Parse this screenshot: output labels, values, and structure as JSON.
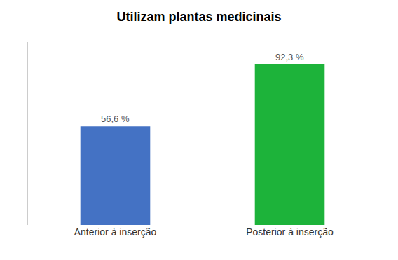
{
  "chart_data": {
    "type": "bar",
    "title": "Utilizam plantas medicinais",
    "categories": [
      "Anterior à inserção",
      "Posterior à inserção"
    ],
    "values": [
      56.6,
      92.3
    ],
    "value_labels": [
      "56,6 %",
      "92,3 %"
    ],
    "data_labels": true,
    "colors": [
      "#4472C4",
      "#1db33a"
    ],
    "ylim": [
      0,
      105
    ],
    "yticks": [],
    "grid": false,
    "tick_labels": "x"
  }
}
